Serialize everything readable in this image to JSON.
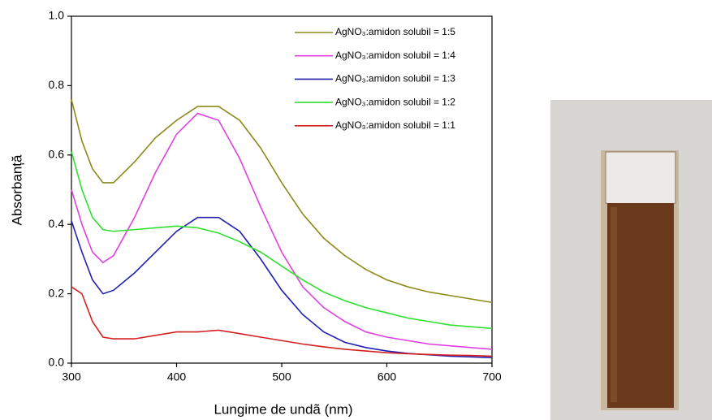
{
  "chart_data": {
    "type": "line",
    "xlabel": "Lungime de undã (nm)",
    "ylabel": "Absorbanță",
    "x": [
      300,
      310,
      320,
      330,
      340,
      360,
      380,
      400,
      420,
      440,
      460,
      480,
      500,
      520,
      540,
      560,
      580,
      600,
      620,
      640,
      660,
      680,
      700
    ],
    "xlim": [
      300,
      700
    ],
    "xticks": [
      300,
      400,
      500,
      600,
      700
    ],
    "ylim": [
      0,
      1
    ],
    "yticks": [
      {
        "value": 0,
        "label": "0.0"
      },
      0.2,
      0.4,
      0.6,
      0.8,
      {
        "value": 1,
        "label": "1.0"
      }
    ],
    "legend": "upper right",
    "series": [
      {
        "name": "AgNO₃:amidon solubil = 1:5",
        "color": "#8b8b1a",
        "values": [
          0.76,
          0.64,
          0.56,
          0.52,
          0.52,
          0.58,
          0.65,
          0.7,
          0.74,
          0.74,
          0.7,
          0.62,
          0.52,
          0.43,
          0.36,
          0.31,
          0.27,
          0.24,
          0.22,
          0.205,
          0.195,
          0.185,
          0.175
        ]
      },
      {
        "name": "AgNO₃:amidon solubil = 1:4",
        "color": "#e040e0",
        "values": [
          0.5,
          0.4,
          0.32,
          0.29,
          0.31,
          0.42,
          0.55,
          0.66,
          0.72,
          0.7,
          0.59,
          0.45,
          0.32,
          0.22,
          0.16,
          0.12,
          0.09,
          0.075,
          0.065,
          0.055,
          0.05,
          0.045,
          0.04
        ]
      },
      {
        "name": "AgNO₃:amidon solubil = 1:3",
        "color": "#2020b0",
        "values": [
          0.41,
          0.32,
          0.24,
          0.2,
          0.21,
          0.26,
          0.32,
          0.38,
          0.42,
          0.42,
          0.38,
          0.3,
          0.21,
          0.14,
          0.09,
          0.06,
          0.045,
          0.035,
          0.028,
          0.024,
          0.02,
          0.018,
          0.016
        ]
      },
      {
        "name": "AgNO₃:amidon solubil = 1:2",
        "color": "#30e030",
        "values": [
          0.61,
          0.5,
          0.42,
          0.385,
          0.38,
          0.385,
          0.39,
          0.395,
          0.39,
          0.375,
          0.35,
          0.32,
          0.28,
          0.24,
          0.205,
          0.18,
          0.16,
          0.145,
          0.13,
          0.12,
          0.11,
          0.105,
          0.1
        ]
      },
      {
        "name": "AgNO₃:amidon solubil = 1:1",
        "color": "#d42020",
        "values": [
          0.22,
          0.2,
          0.12,
          0.075,
          0.07,
          0.07,
          0.08,
          0.09,
          0.09,
          0.095,
          0.085,
          0.075,
          0.065,
          0.055,
          0.047,
          0.04,
          0.035,
          0.03,
          0.027,
          0.025,
          0.023,
          0.022,
          0.02
        ]
      }
    ]
  }
}
